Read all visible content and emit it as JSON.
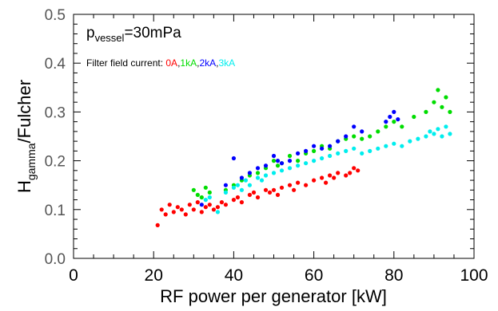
{
  "chart_data": {
    "type": "scatter",
    "title": "",
    "xlabel": "RF power per generator [kW]",
    "ylabel": {
      "main": "H",
      "sub": "gamma",
      "rest": "/Fulcher"
    },
    "xlim": [
      0,
      100
    ],
    "ylim": [
      0.0,
      0.5
    ],
    "xticks": [
      "0",
      "20",
      "40",
      "60",
      "80",
      "100"
    ],
    "yticks": [
      "0.0",
      "0.1",
      "0.2",
      "0.3",
      "0.4",
      "0.5"
    ],
    "grid": false,
    "annotation": {
      "main": "p",
      "sub": "vessel",
      "rest": "=30mPa"
    },
    "legend": {
      "label": "Filter field current:",
      "placement": "top-left",
      "entries": [
        {
          "text": "0A",
          "color": "#ff0000"
        },
        {
          "text": ",",
          "color": "#000000"
        },
        {
          "text": "1kA",
          "color": "#00dd00"
        },
        {
          "text": ",",
          "color": "#000000"
        },
        {
          "text": "2kA",
          "color": "#0000ff"
        },
        {
          "text": ",",
          "color": "#000000"
        },
        {
          "text": "3kA",
          "color": "#00eeee"
        }
      ]
    },
    "series": [
      {
        "name": "0A",
        "color": "#ff0000",
        "points": [
          [
            21,
            0.068
          ],
          [
            22,
            0.1
          ],
          [
            23,
            0.09
          ],
          [
            24,
            0.11
          ],
          [
            25,
            0.095
          ],
          [
            26,
            0.105
          ],
          [
            27,
            0.1
          ],
          [
            28,
            0.09
          ],
          [
            29,
            0.11
          ],
          [
            30,
            0.1
          ],
          [
            31,
            0.115
          ],
          [
            32,
            0.095
          ],
          [
            33,
            0.105
          ],
          [
            34,
            0.11
          ],
          [
            35,
            0.1
          ],
          [
            36,
            0.105
          ],
          [
            37,
            0.115
          ],
          [
            38,
            0.11
          ],
          [
            40,
            0.12
          ],
          [
            41,
            0.125
          ],
          [
            42,
            0.115
          ],
          [
            44,
            0.13
          ],
          [
            45,
            0.135
          ],
          [
            46,
            0.125
          ],
          [
            48,
            0.14
          ],
          [
            49,
            0.135
          ],
          [
            50,
            0.14
          ],
          [
            51,
            0.13
          ],
          [
            52,
            0.145
          ],
          [
            54,
            0.15
          ],
          [
            55,
            0.14
          ],
          [
            56,
            0.155
          ],
          [
            58,
            0.15
          ],
          [
            60,
            0.16
          ],
          [
            62,
            0.165
          ],
          [
            63,
            0.155
          ],
          [
            64,
            0.17
          ],
          [
            65,
            0.165
          ],
          [
            66,
            0.175
          ],
          [
            68,
            0.17
          ],
          [
            69,
            0.175
          ],
          [
            70,
            0.185
          ],
          [
            71,
            0.18
          ]
        ]
      },
      {
        "name": "1kA",
        "color": "#00dd00",
        "points": [
          [
            30,
            0.14
          ],
          [
            31,
            0.13
          ],
          [
            32,
            0.125
          ],
          [
            33,
            0.145
          ],
          [
            34,
            0.135
          ],
          [
            38,
            0.14
          ],
          [
            40,
            0.15
          ],
          [
            42,
            0.16
          ],
          [
            44,
            0.17
          ],
          [
            46,
            0.175
          ],
          [
            48,
            0.185
          ],
          [
            50,
            0.2
          ],
          [
            51,
            0.19
          ],
          [
            52,
            0.195
          ],
          [
            54,
            0.21
          ],
          [
            56,
            0.2
          ],
          [
            58,
            0.215
          ],
          [
            60,
            0.22
          ],
          [
            62,
            0.23
          ],
          [
            64,
            0.225
          ],
          [
            66,
            0.24
          ],
          [
            68,
            0.245
          ],
          [
            70,
            0.25
          ],
          [
            72,
            0.245
          ],
          [
            74,
            0.25
          ],
          [
            76,
            0.26
          ],
          [
            78,
            0.27
          ],
          [
            80,
            0.28
          ],
          [
            82,
            0.27
          ],
          [
            85,
            0.29
          ],
          [
            88,
            0.3
          ],
          [
            90,
            0.32
          ],
          [
            91,
            0.345
          ],
          [
            92,
            0.31
          ],
          [
            93,
            0.33
          ],
          [
            94,
            0.3
          ]
        ]
      },
      {
        "name": "2kA",
        "color": "#0000ff",
        "points": [
          [
            32,
            0.11
          ],
          [
            38,
            0.15
          ],
          [
            40,
            0.205
          ],
          [
            42,
            0.165
          ],
          [
            44,
            0.175
          ],
          [
            46,
            0.185
          ],
          [
            48,
            0.19
          ],
          [
            50,
            0.21
          ],
          [
            51,
            0.2
          ],
          [
            52,
            0.195
          ],
          [
            54,
            0.2
          ],
          [
            56,
            0.215
          ],
          [
            58,
            0.22
          ],
          [
            60,
            0.23
          ],
          [
            62,
            0.225
          ],
          [
            64,
            0.23
          ],
          [
            66,
            0.24
          ],
          [
            68,
            0.25
          ],
          [
            70,
            0.27
          ],
          [
            72,
            0.26
          ],
          [
            78,
            0.28
          ],
          [
            79,
            0.29
          ],
          [
            80,
            0.3
          ],
          [
            81,
            0.285
          ]
        ]
      },
      {
        "name": "3kA",
        "color": "#00eeee",
        "points": [
          [
            33,
            0.12
          ],
          [
            34,
            0.125
          ],
          [
            36,
            0.095
          ],
          [
            38,
            0.135
          ],
          [
            40,
            0.145
          ],
          [
            41,
            0.15
          ],
          [
            42,
            0.14
          ],
          [
            43,
            0.16
          ],
          [
            44,
            0.15
          ],
          [
            46,
            0.165
          ],
          [
            47,
            0.16
          ],
          [
            48,
            0.17
          ],
          [
            50,
            0.175
          ],
          [
            52,
            0.18
          ],
          [
            54,
            0.185
          ],
          [
            56,
            0.19
          ],
          [
            58,
            0.195
          ],
          [
            60,
            0.2
          ],
          [
            62,
            0.205
          ],
          [
            64,
            0.21
          ],
          [
            66,
            0.215
          ],
          [
            68,
            0.22
          ],
          [
            70,
            0.225
          ],
          [
            72,
            0.215
          ],
          [
            74,
            0.22
          ],
          [
            76,
            0.225
          ],
          [
            78,
            0.23
          ],
          [
            80,
            0.235
          ],
          [
            82,
            0.23
          ],
          [
            84,
            0.24
          ],
          [
            86,
            0.245
          ],
          [
            88,
            0.25
          ],
          [
            89,
            0.26
          ],
          [
            90,
            0.255
          ],
          [
            91,
            0.265
          ],
          [
            92,
            0.25
          ],
          [
            93,
            0.27
          ],
          [
            94,
            0.255
          ]
        ]
      }
    ]
  }
}
